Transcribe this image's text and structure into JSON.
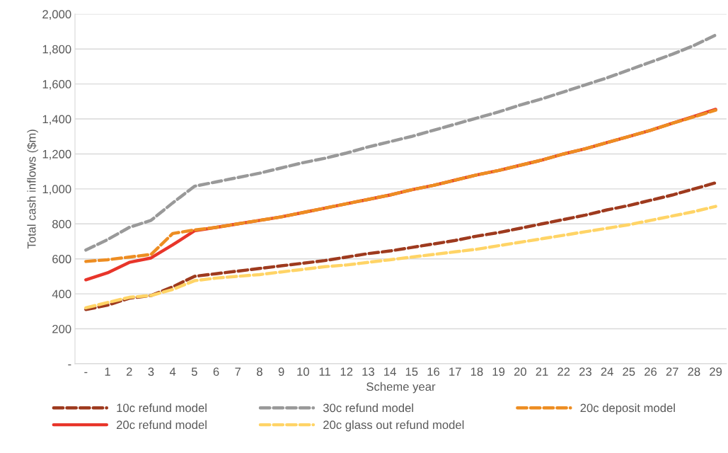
{
  "chart_data": {
    "type": "line",
    "xlabel": "Scheme year",
    "ylabel": "Total cash inflows ($m)",
    "categories": [
      "-",
      "1",
      "2",
      "3",
      "4",
      "5",
      "6",
      "7",
      "8",
      "9",
      "10",
      "11",
      "12",
      "13",
      "14",
      "15",
      "16",
      "17",
      "18",
      "19",
      "20",
      "21",
      "22",
      "23",
      "24",
      "25",
      "26",
      "27",
      "28",
      "29"
    ],
    "series": [
      {
        "name": "10c refund model",
        "color": "#9e3a1e",
        "line_style": "dashed",
        "values": [
          310,
          335,
          375,
          390,
          440,
          500,
          515,
          530,
          545,
          560,
          575,
          590,
          610,
          630,
          645,
          665,
          685,
          705,
          730,
          750,
          775,
          800,
          825,
          850,
          880,
          905,
          935,
          965,
          1000,
          1035
        ]
      },
      {
        "name": "20c refund model",
        "color": "#e8352a",
        "line_style": "solid",
        "values": [
          480,
          520,
          580,
          605,
          680,
          760,
          780,
          800,
          820,
          840,
          865,
          890,
          915,
          940,
          965,
          995,
          1020,
          1050,
          1080,
          1105,
          1135,
          1165,
          1200,
          1230,
          1265,
          1300,
          1335,
          1375,
          1415,
          1455
        ]
      },
      {
        "name": "30c refund model",
        "color": "#999999",
        "line_style": "dashed",
        "values": [
          650,
          710,
          780,
          820,
          920,
          1015,
          1040,
          1065,
          1090,
          1120,
          1150,
          1175,
          1205,
          1240,
          1270,
          1300,
          1335,
          1370,
          1405,
          1440,
          1480,
          1515,
          1555,
          1595,
          1635,
          1680,
          1725,
          1770,
          1820,
          1880
        ]
      },
      {
        "name": "20c glass out refund model",
        "color": "#ffd466",
        "line_style": "dashed",
        "values": [
          320,
          350,
          380,
          390,
          425,
          475,
          490,
          500,
          510,
          525,
          540,
          555,
          565,
          580,
          595,
          610,
          625,
          640,
          655,
          675,
          695,
          715,
          735,
          755,
          775,
          795,
          820,
          845,
          870,
          900
        ]
      },
      {
        "name": "20c deposit model",
        "color": "#ed8d22",
        "line_style": "dashed",
        "values": [
          585,
          595,
          610,
          625,
          745,
          765,
          780,
          800,
          820,
          840,
          865,
          890,
          915,
          940,
          965,
          995,
          1020,
          1050,
          1080,
          1105,
          1135,
          1165,
          1200,
          1230,
          1265,
          1300,
          1335,
          1375,
          1412,
          1450
        ]
      }
    ],
    "ylim": [
      0,
      2000
    ],
    "yticks": [
      {
        "value": 0,
        "label": "-"
      },
      {
        "value": 200,
        "label": "200"
      },
      {
        "value": 400,
        "label": "400"
      },
      {
        "value": 600,
        "label": "600"
      },
      {
        "value": 800,
        "label": "800"
      },
      {
        "value": 1000,
        "label": "1,000"
      },
      {
        "value": 1200,
        "label": "1,200"
      },
      {
        "value": 1400,
        "label": "1,400"
      },
      {
        "value": 1600,
        "label": "1,600"
      },
      {
        "value": 1800,
        "label": "1,800"
      },
      {
        "value": 2000,
        "label": "2,000"
      }
    ],
    "grid": "y",
    "legend": "bottom"
  }
}
